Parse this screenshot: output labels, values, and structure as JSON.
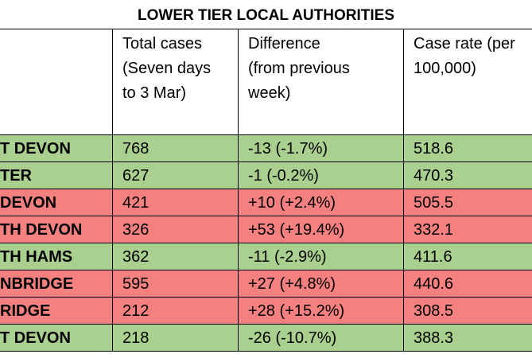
{
  "header": {
    "title": "LOWER TIER LOCAL AUTHORITIES"
  },
  "table": {
    "columns": [
      [],
      [
        "Total cases",
        "(Seven days",
        "to 3 Mar)"
      ],
      [
        "Difference",
        "(from previous",
        "week)"
      ],
      [
        "Case rate (per",
        "100,000)"
      ]
    ],
    "rows": [
      {
        "cells": [
          "T DEVON",
          "768",
          "-13 (-1.7%)",
          "518.6"
        ],
        "color": "#a9d08e"
      },
      {
        "cells": [
          "TER",
          "627",
          "-1 (-0.2%)",
          "470.3"
        ],
        "color": "#a9d08e"
      },
      {
        "cells": [
          "DEVON",
          "421",
          "+10 (+2.4%)",
          "505.5"
        ],
        "color": "#f4817f"
      },
      {
        "cells": [
          "TH DEVON",
          "326",
          "+53 (+19.4%)",
          "332.1"
        ],
        "color": "#f4817f"
      },
      {
        "cells": [
          "TH HAMS",
          "362",
          "-11 (-2.9%)",
          "411.6"
        ],
        "color": "#a9d08e"
      },
      {
        "cells": [
          "NBRIDGE",
          "595",
          "+27 (+4.8%)",
          "440.6"
        ],
        "color": "#f4817f"
      },
      {
        "cells": [
          "RIDGE",
          "212",
          "+28 (+15.2%)",
          "308.5"
        ],
        "color": "#f4817f"
      },
      {
        "cells": [
          "T DEVON",
          "218",
          "-26 (-10.7%)",
          "388.3"
        ],
        "color": "#a9d08e"
      }
    ]
  }
}
